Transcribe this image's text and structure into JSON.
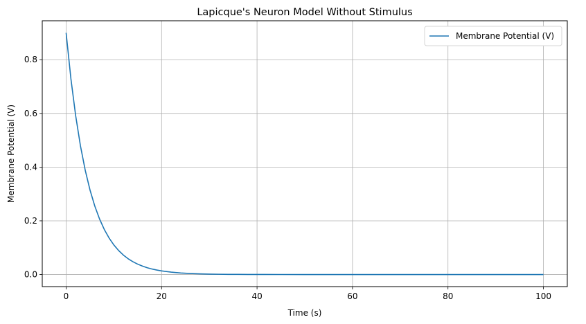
{
  "chart_data": {
    "type": "line",
    "title": "Lapicque's Neuron Model Without Stimulus",
    "xlabel": "Time (s)",
    "ylabel": "Membrane Potential (V)",
    "xlim": [
      -5,
      105
    ],
    "ylim": [
      -0.045,
      0.945
    ],
    "xticks": [
      0,
      20,
      40,
      60,
      80,
      100
    ],
    "xtick_labels": [
      "0",
      "20",
      "40",
      "60",
      "80",
      "100"
    ],
    "yticks": [
      0.0,
      0.2,
      0.4,
      0.6,
      0.8
    ],
    "ytick_labels": [
      "0.0",
      "0.2",
      "0.4",
      "0.6",
      "0.8"
    ],
    "grid": true,
    "legend_position": "top-right",
    "series": [
      {
        "name": "Membrane Potential (V)",
        "color": "#1f77b4",
        "x": [
          0,
          1,
          2,
          3,
          4,
          5,
          6,
          7,
          8,
          9,
          10,
          11,
          12,
          13,
          14,
          15,
          16,
          17,
          18,
          19,
          20,
          22,
          24,
          26,
          28,
          30,
          32,
          34,
          36,
          38,
          40,
          45,
          50,
          55,
          60,
          65,
          70,
          75,
          80,
          85,
          90,
          95,
          100
        ],
        "y": [
          0.9,
          0.7295,
          0.5914,
          0.4794,
          0.3886,
          0.315,
          0.2553,
          0.207,
          0.1678,
          0.136,
          0.1102,
          0.0894,
          0.0724,
          0.0587,
          0.0476,
          0.0386,
          0.0313,
          0.0253,
          0.0205,
          0.0167,
          0.0135,
          0.0089,
          0.0058,
          0.0038,
          0.0025,
          0.0017,
          0.0011,
          0.0007,
          0.0005,
          0.0003,
          0.0002,
          0.0001,
          0.0,
          0.0,
          0.0,
          0.0,
          0.0,
          0.0,
          0.0,
          0.0,
          0.0,
          0.0,
          0.0
        ]
      }
    ]
  }
}
